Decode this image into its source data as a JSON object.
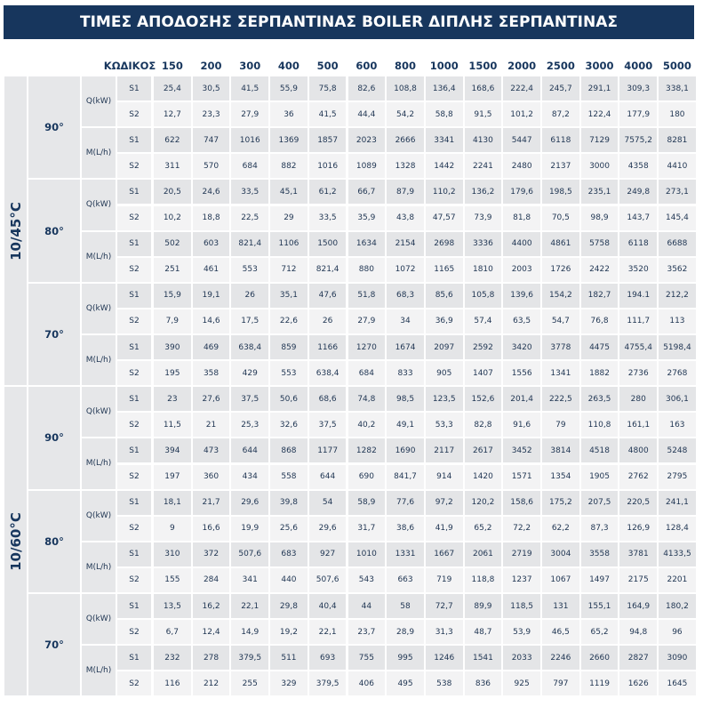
{
  "header": {
    "title": "ΤΙΜΕΣ ΑΠΟΔΟΣΗΣ ΣΕΡΠΑΝΤΙΝΑΣ BOILER ΔΙΠΛΗΣ ΣΕΡΠΑΝΤΙΝΑΣ"
  },
  "table": {
    "code_label": "ΚΩΔΙΚΟΣ",
    "codes": [
      "150",
      "200",
      "300",
      "400",
      "500",
      "600",
      "800",
      "1000",
      "1500",
      "2000",
      "2500",
      "3000",
      "4000",
      "5000"
    ],
    "groups": [
      {
        "label": "10/45°C",
        "blocks": [
          {
            "temp": "90°",
            "measures": [
              {
                "label": "Q(kW)",
                "rows": [
                  {
                    "label": "S1",
                    "cells": [
                      "25,4",
                      "30,5",
                      "41,5",
                      "55,9",
                      "75,8",
                      "82,6",
                      "108,8",
                      "136,4",
                      "168,6",
                      "222,4",
                      "245,7",
                      "291,1",
                      "309,3",
                      "338,1"
                    ]
                  },
                  {
                    "label": "S2",
                    "cells": [
                      "12,7",
                      "23,3",
                      "27,9",
                      "36",
                      "41,5",
                      "44,4",
                      "54,2",
                      "58,8",
                      "91,5",
                      "101,2",
                      "87,2",
                      "122,4",
                      "177,9",
                      "180"
                    ]
                  }
                ]
              },
              {
                "label": "M(L/h)",
                "rows": [
                  {
                    "label": "S1",
                    "cells": [
                      "622",
                      "747",
                      "1016",
                      "1369",
                      "1857",
                      "2023",
                      "2666",
                      "3341",
                      "4130",
                      "5447",
                      "6118",
                      "7129",
                      "7575,2",
                      "8281"
                    ]
                  },
                  {
                    "label": "S2",
                    "cells": [
                      "311",
                      "570",
                      "684",
                      "882",
                      "1016",
                      "1089",
                      "1328",
                      "1442",
                      "2241",
                      "2480",
                      "2137",
                      "3000",
                      "4358",
                      "4410"
                    ]
                  }
                ]
              }
            ]
          },
          {
            "temp": "80°",
            "measures": [
              {
                "label": "Q(kW)",
                "rows": [
                  {
                    "label": "S1",
                    "cells": [
                      "20,5",
                      "24,6",
                      "33,5",
                      "45,1",
                      "61,2",
                      "66,7",
                      "87,9",
                      "110,2",
                      "136,2",
                      "179,6",
                      "198,5",
                      "235,1",
                      "249,8",
                      "273,1"
                    ]
                  },
                  {
                    "label": "S2",
                    "cells": [
                      "10,2",
                      "18,8",
                      "22,5",
                      "29",
                      "33,5",
                      "35,9",
                      "43,8",
                      "47,57",
                      "73,9",
                      "81,8",
                      "70,5",
                      "98,9",
                      "143,7",
                      "145,4"
                    ]
                  }
                ]
              },
              {
                "label": "M(L/h)",
                "rows": [
                  {
                    "label": "S1",
                    "cells": [
                      "502",
                      "603",
                      "821,4",
                      "1106",
                      "1500",
                      "1634",
                      "2154",
                      "2698",
                      "3336",
                      "4400",
                      "4861",
                      "5758",
                      "6118",
                      "6688"
                    ]
                  },
                  {
                    "label": "S2",
                    "cells": [
                      "251",
                      "461",
                      "553",
                      "712",
                      "821,4",
                      "880",
                      "1072",
                      "1165",
                      "1810",
                      "2003",
                      "1726",
                      "2422",
                      "3520",
                      "3562"
                    ]
                  }
                ]
              }
            ]
          },
          {
            "temp": "70°",
            "measures": [
              {
                "label": "Q(kW)",
                "rows": [
                  {
                    "label": "S1",
                    "cells": [
                      "15,9",
                      "19,1",
                      "26",
                      "35,1",
                      "47,6",
                      "51,8",
                      "68,3",
                      "85,6",
                      "105,8",
                      "139,6",
                      "154,2",
                      "182,7",
                      "194.1",
                      "212,2"
                    ]
                  },
                  {
                    "label": "S2",
                    "cells": [
                      "7,9",
                      "14,6",
                      "17,5",
                      "22,6",
                      "26",
                      "27,9",
                      "34",
                      "36,9",
                      "57,4",
                      "63,5",
                      "54,7",
                      "76,8",
                      "111,7",
                      "113"
                    ]
                  }
                ]
              },
              {
                "label": "M(L/h)",
                "rows": [
                  {
                    "label": "S1",
                    "cells": [
                      "390",
                      "469",
                      "638,4",
                      "859",
                      "1166",
                      "1270",
                      "1674",
                      "2097",
                      "2592",
                      "3420",
                      "3778",
                      "4475",
                      "4755,4",
                      "5198,4"
                    ]
                  },
                  {
                    "label": "S2",
                    "cells": [
                      "195",
                      "358",
                      "429",
                      "553",
                      "638,4",
                      "684",
                      "833",
                      "905",
                      "1407",
                      "1556",
                      "1341",
                      "1882",
                      "2736",
                      "2768"
                    ]
                  }
                ]
              }
            ]
          }
        ]
      },
      {
        "label": "10/60°C",
        "blocks": [
          {
            "temp": "90°",
            "measures": [
              {
                "label": "Q(kW)",
                "rows": [
                  {
                    "label": "S1",
                    "cells": [
                      "23",
                      "27,6",
                      "37,5",
                      "50,6",
                      "68,6",
                      "74,8",
                      "98,5",
                      "123,5",
                      "152,6",
                      "201,4",
                      "222,5",
                      "263,5",
                      "280",
                      "306,1"
                    ]
                  },
                  {
                    "label": "S2",
                    "cells": [
                      "11,5",
                      "21",
                      "25,3",
                      "32,6",
                      "37,5",
                      "40,2",
                      "49,1",
                      "53,3",
                      "82,8",
                      "91,6",
                      "79",
                      "110,8",
                      "161,1",
                      "163"
                    ]
                  }
                ]
              },
              {
                "label": "M(L/h)",
                "rows": [
                  {
                    "label": "S1",
                    "cells": [
                      "394",
                      "473",
                      "644",
                      "868",
                      "1177",
                      "1282",
                      "1690",
                      "2117",
                      "2617",
                      "3452",
                      "3814",
                      "4518",
                      "4800",
                      "5248"
                    ]
                  },
                  {
                    "label": "S2",
                    "cells": [
                      "197",
                      "360",
                      "434",
                      "558",
                      "644",
                      "690",
                      "841,7",
                      "914",
                      "1420",
                      "1571",
                      "1354",
                      "1905",
                      "2762",
                      "2795"
                    ]
                  }
                ]
              }
            ]
          },
          {
            "temp": "80°",
            "measures": [
              {
                "label": "Q(kW)",
                "rows": [
                  {
                    "label": "S1",
                    "cells": [
                      "18,1",
                      "21,7",
                      "29,6",
                      "39,8",
                      "54",
                      "58,9",
                      "77,6",
                      "97,2",
                      "120,2",
                      "158,6",
                      "175,2",
                      "207,5",
                      "220,5",
                      "241,1"
                    ]
                  },
                  {
                    "label": "S2",
                    "cells": [
                      "9",
                      "16,6",
                      "19,9",
                      "25,6",
                      "29,6",
                      "31,7",
                      "38,6",
                      "41,9",
                      "65,2",
                      "72,2",
                      "62,2",
                      "87,3",
                      "126,9",
                      "128,4"
                    ]
                  }
                ]
              },
              {
                "label": "M(L/h)",
                "rows": [
                  {
                    "label": "S1",
                    "cells": [
                      "310",
                      "372",
                      "507,6",
                      "683",
                      "927",
                      "1010",
                      "1331",
                      "1667",
                      "2061",
                      "2719",
                      "3004",
                      "3558",
                      "3781",
                      "4133,5"
                    ]
                  },
                  {
                    "label": "S2",
                    "cells": [
                      "155",
                      "284",
                      "341",
                      "440",
                      "507,6",
                      "543",
                      "663",
                      "719",
                      "118,8",
                      "1237",
                      "1067",
                      "1497",
                      "2175",
                      "2201"
                    ]
                  }
                ]
              }
            ]
          },
          {
            "temp": "70°",
            "measures": [
              {
                "label": "Q(kW)",
                "rows": [
                  {
                    "label": "S1",
                    "cells": [
                      "13,5",
                      "16,2",
                      "22,1",
                      "29,8",
                      "40,4",
                      "44",
                      "58",
                      "72,7",
                      "89,9",
                      "118,5",
                      "131",
                      "155,1",
                      "164,9",
                      "180,2"
                    ]
                  },
                  {
                    "label": "S2",
                    "cells": [
                      "6,7",
                      "12,4",
                      "14,9",
                      "19,2",
                      "22,1",
                      "23,7",
                      "28,9",
                      "31,3",
                      "48,7",
                      "53,9",
                      "46,5",
                      "65,2",
                      "94,8",
                      "96"
                    ]
                  }
                ]
              },
              {
                "label": "M(L/h)",
                "rows": [
                  {
                    "label": "S1",
                    "cells": [
                      "232",
                      "278",
                      "379,5",
                      "511",
                      "693",
                      "755",
                      "995",
                      "1246",
                      "1541",
                      "2033",
                      "2246",
                      "2660",
                      "2827",
                      "3090"
                    ]
                  },
                  {
                    "label": "S2",
                    "cells": [
                      "116",
                      "212",
                      "255",
                      "329",
                      "379,5",
                      "406",
                      "495",
                      "538",
                      "836",
                      "925",
                      "797",
                      "1119",
                      "1626",
                      "1645"
                    ]
                  }
                ]
              }
            ]
          }
        ]
      }
    ]
  }
}
